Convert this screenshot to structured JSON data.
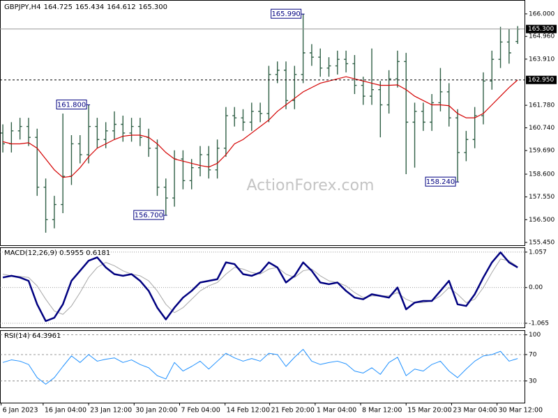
{
  "chart_data": [
    {
      "type": "ohlc",
      "title": "GBPJPY,H4",
      "title_values": [
        "164.725",
        "165.434",
        "164.612",
        "165.300"
      ],
      "color": "#2f5f45",
      "watermark": "ActionForex.com",
      "open": [
        160.5,
        160.0,
        160.6,
        160.8,
        160.3,
        158.0,
        156.5,
        157.2,
        158.5,
        160.0,
        159.5,
        160.8,
        160.2,
        160.6,
        160.9,
        160.5,
        160.8,
        160.3,
        159.8,
        158.0,
        157.5,
        159.3,
        158.3,
        158.9,
        159.5,
        158.8,
        159.8,
        161.3,
        161.2,
        161.0,
        161.5,
        161.4,
        163.2,
        163.4,
        162.0,
        163.2,
        164.2,
        164.0,
        163.5,
        163.6,
        163.9,
        163.7,
        162.7,
        162.2,
        162.5,
        161.8,
        163.0,
        163.8,
        161.0,
        161.5,
        161.0,
        161.9,
        162.4,
        161.2,
        159.6,
        160.2,
        161.3,
        162.9,
        163.9,
        164.7,
        164.725
      ],
      "high": [
        160.9,
        161.0,
        161.2,
        161.2,
        160.7,
        158.4,
        157.6,
        161.4,
        160.4,
        160.4,
        161.8,
        161.2,
        161.0,
        161.5,
        161.3,
        161.2,
        161.2,
        160.7,
        160.2,
        158.4,
        159.7,
        159.7,
        159.3,
        159.9,
        159.9,
        160.2,
        161.7,
        161.7,
        161.6,
        161.9,
        161.9,
        163.6,
        163.8,
        163.8,
        163.6,
        165.99,
        164.6,
        164.4,
        164.0,
        164.3,
        164.3,
        164.1,
        163.1,
        164.4,
        162.9,
        163.4,
        164.3,
        164.2,
        161.9,
        161.9,
        162.3,
        163.5,
        162.8,
        161.6,
        160.6,
        161.7,
        163.3,
        164.3,
        165.4,
        165.3,
        165.434
      ],
      "low": [
        159.6,
        159.6,
        160.2,
        159.9,
        157.6,
        155.9,
        156.1,
        156.8,
        158.1,
        159.1,
        159.1,
        159.8,
        159.8,
        160.2,
        160.1,
        160.1,
        159.9,
        159.4,
        157.6,
        156.7,
        157.1,
        157.9,
        157.9,
        158.5,
        158.4,
        158.4,
        159.4,
        160.8,
        160.6,
        160.6,
        161.0,
        161.0,
        162.8,
        161.6,
        161.6,
        162.8,
        163.6,
        163.1,
        163.1,
        163.2,
        163.3,
        162.3,
        161.8,
        161.8,
        160.3,
        161.4,
        162.6,
        158.6,
        158.9,
        160.6,
        160.6,
        161.5,
        160.8,
        158.24,
        159.2,
        159.8,
        160.9,
        162.5,
        163.5,
        163.7,
        164.612
      ],
      "close": [
        160.0,
        160.6,
        160.8,
        160.3,
        158.0,
        156.5,
        157.2,
        158.5,
        160.0,
        159.5,
        160.8,
        160.2,
        160.6,
        160.9,
        160.5,
        160.8,
        160.3,
        159.8,
        158.0,
        157.5,
        159.3,
        158.3,
        158.9,
        159.5,
        158.8,
        159.8,
        161.3,
        161.2,
        161.0,
        161.5,
        161.4,
        163.2,
        163.4,
        162.0,
        163.2,
        164.2,
        164.0,
        163.5,
        163.6,
        163.9,
        163.7,
        162.7,
        162.2,
        162.5,
        161.8,
        163.0,
        163.8,
        161.0,
        161.5,
        161.0,
        161.9,
        162.4,
        161.2,
        159.6,
        160.2,
        161.3,
        162.9,
        163.9,
        164.7,
        164.2,
        165.3
      ],
      "lines": [
        {
          "color": "#d40000",
          "values": [
            160.1,
            160.0,
            160.0,
            160.05,
            159.8,
            159.3,
            158.8,
            158.45,
            158.5,
            158.9,
            159.4,
            159.8,
            160.0,
            160.2,
            160.35,
            160.4,
            160.4,
            160.3,
            160.0,
            159.6,
            159.3,
            159.2,
            159.1,
            159.0,
            158.93,
            159.1,
            159.5,
            160.0,
            160.2,
            160.5,
            160.8,
            161.1,
            161.5,
            161.8,
            162.1,
            162.4,
            162.6,
            162.8,
            162.9,
            163.0,
            163.1,
            163.0,
            162.9,
            162.8,
            162.7,
            162.7,
            162.72,
            162.5,
            162.2,
            162.0,
            161.8,
            161.8,
            161.76,
            161.4,
            161.2,
            161.2,
            161.4,
            161.8,
            162.2,
            162.6,
            162.95
          ]
        }
      ],
      "price_labels": [
        {
          "value": 165.3,
          "label": "165.300",
          "line": "solid"
        },
        {
          "value": 162.95,
          "label": "162.950",
          "line": "dashed"
        }
      ],
      "annotations": [
        {
          "x": 35,
          "value": 165.99,
          "label": "165.990"
        },
        {
          "x": 10,
          "value": 161.8,
          "label": "161.800"
        },
        {
          "x": 19,
          "value": 156.7,
          "label": "156.700"
        },
        {
          "x": 53,
          "value": 158.24,
          "label": "158.240"
        }
      ],
      "ylim": [
        155.32,
        166.64
      ],
      "yticks": [
        {
          "value": 166,
          "label": "166.000"
        },
        {
          "value": 164.96,
          "label": "164.960"
        },
        {
          "value": 163.91,
          "label": "163.910"
        },
        {
          "value": 161.78,
          "label": "161.780"
        },
        {
          "value": 160.74,
          "label": "160.740"
        },
        {
          "value": 159.69,
          "label": "159.690"
        },
        {
          "value": 158.6,
          "label": "158.600"
        },
        {
          "value": 157.55,
          "label": "157.550"
        },
        {
          "value": 156.5,
          "label": "156.500"
        },
        {
          "value": 155.45,
          "label": "155.450"
        }
      ],
      "xlim": [
        -0.33,
        60.8
      ],
      "xticks": [
        {
          "value": -0.2,
          "label": "6 Jan 2023"
        },
        {
          "value": 4.7,
          "label": "16 Jan 04:00"
        },
        {
          "value": 10.0,
          "label": "23 Jan 12:00"
        },
        {
          "value": 15.3,
          "label": "30 Jan 20:00"
        },
        {
          "value": 20.6,
          "label": "7 Feb 04:00"
        },
        {
          "value": 25.9,
          "label": "14 Feb 12:00"
        },
        {
          "value": 31.1,
          "label": "21 Feb 20:00"
        },
        {
          "value": 36.4,
          "label": "1 Mar 04:00"
        },
        {
          "value": 41.7,
          "label": "8 Mar 12:00"
        },
        {
          "value": 47.0,
          "label": "15 Mar 20:00"
        },
        {
          "value": 52.3,
          "label": "23 Mar 04:00"
        },
        {
          "value": 57.6,
          "label": "30 Mar 12:00"
        }
      ]
    },
    {
      "type": "line",
      "title": "MACD(12,26,9) 0.5955 0.6181",
      "grid": "dotted",
      "series": [
        {
          "color": "#000080",
          "width": 2.5,
          "values": [
            0.3,
            0.35,
            0.3,
            0.2,
            -0.5,
            -1.0,
            -0.9,
            -0.5,
            0.2,
            0.5,
            0.8,
            0.9,
            0.6,
            0.4,
            0.35,
            0.4,
            0.2,
            -0.1,
            -0.6,
            -0.95,
            -0.6,
            -0.3,
            -0.1,
            0.15,
            0.2,
            0.25,
            0.75,
            0.7,
            0.4,
            0.35,
            0.45,
            0.75,
            0.6,
            0.15,
            0.35,
            0.75,
            0.5,
            0.15,
            0.1,
            0.15,
            -0.1,
            -0.3,
            -0.35,
            -0.2,
            -0.25,
            -0.3,
            0.0,
            -0.65,
            -0.45,
            -0.4,
            -0.4,
            -0.1,
            0.2,
            -0.5,
            -0.55,
            -0.2,
            0.3,
            0.75,
            1.05,
            0.75,
            0.6
          ]
        },
        {
          "color": "#a8a8a8",
          "width": 1,
          "values": [
            0.4,
            0.35,
            0.33,
            0.3,
            0.05,
            -0.35,
            -0.7,
            -0.8,
            -0.55,
            -0.15,
            0.3,
            0.6,
            0.75,
            0.65,
            0.5,
            0.4,
            0.35,
            0.2,
            -0.1,
            -0.5,
            -0.75,
            -0.6,
            -0.35,
            -0.1,
            0.05,
            0.15,
            0.4,
            0.6,
            0.55,
            0.45,
            0.4,
            0.55,
            0.6,
            0.4,
            0.3,
            0.5,
            0.55,
            0.35,
            0.2,
            0.15,
            0.05,
            -0.15,
            -0.3,
            -0.25,
            -0.25,
            -0.25,
            -0.15,
            -0.35,
            -0.45,
            -0.45,
            -0.4,
            -0.25,
            0.0,
            -0.2,
            -0.45,
            -0.35,
            0.0,
            0.45,
            0.85,
            0.8,
            0.62
          ]
        }
      ],
      "ylim": [
        -1.19,
        1.2
      ],
      "yticks": [
        1.057,
        {
          "value": 0,
          "label": "0.00"
        },
        -1.065
      ]
    },
    {
      "type": "line",
      "title": "RSI(14) 64.3961",
      "grid": "dashed",
      "series": [
        {
          "color": "#1e90ff",
          "width": 1,
          "values": [
            58,
            62,
            60,
            55,
            35,
            25,
            35,
            52,
            68,
            58,
            70,
            60,
            63,
            65,
            58,
            62,
            55,
            50,
            38,
            33,
            58,
            45,
            52,
            60,
            48,
            60,
            72,
            65,
            60,
            64,
            60,
            72,
            70,
            52,
            66,
            78,
            60,
            55,
            58,
            60,
            56,
            45,
            42,
            50,
            40,
            58,
            66,
            38,
            48,
            45,
            55,
            60,
            45,
            35,
            48,
            60,
            68,
            70,
            75,
            60,
            64
          ]
        }
      ],
      "ylim": [
        -3,
        107
      ],
      "yticks": [
        100,
        70,
        30
      ]
    }
  ]
}
